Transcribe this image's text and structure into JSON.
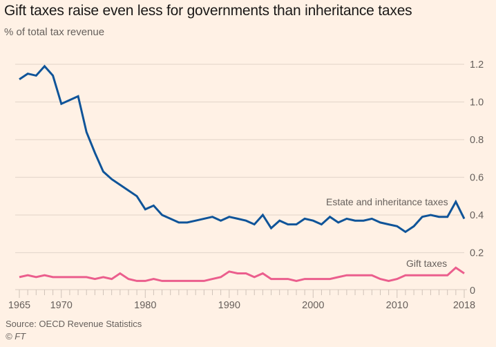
{
  "chart_data": {
    "type": "line",
    "title": "Gift taxes raise even less for governments than inheritance taxes",
    "subtitle": "% of total tax revenue",
    "xlabel": "",
    "ylabel": "% of total tax revenue",
    "x": [
      1965,
      1966,
      1967,
      1968,
      1969,
      1970,
      1971,
      1972,
      1973,
      1974,
      1975,
      1976,
      1977,
      1978,
      1979,
      1980,
      1981,
      1982,
      1983,
      1984,
      1985,
      1986,
      1987,
      1988,
      1989,
      1990,
      1991,
      1992,
      1993,
      1994,
      1995,
      1996,
      1997,
      1998,
      1999,
      2000,
      2001,
      2002,
      2003,
      2004,
      2005,
      2006,
      2007,
      2008,
      2009,
      2010,
      2011,
      2012,
      2013,
      2014,
      2015,
      2016,
      2017,
      2018
    ],
    "series": [
      {
        "name": "Estate and inheritance taxes",
        "color": "#0f5499",
        "values": [
          1.12,
          1.15,
          1.14,
          1.19,
          1.14,
          0.99,
          1.01,
          1.03,
          0.84,
          0.73,
          0.63,
          0.59,
          0.56,
          0.53,
          0.5,
          0.43,
          0.45,
          0.4,
          0.38,
          0.36,
          0.36,
          0.37,
          0.38,
          0.39,
          0.37,
          0.39,
          0.38,
          0.37,
          0.35,
          0.4,
          0.33,
          0.37,
          0.35,
          0.35,
          0.38,
          0.37,
          0.35,
          0.39,
          0.36,
          0.38,
          0.37,
          0.37,
          0.38,
          0.36,
          0.35,
          0.34,
          0.31,
          0.34,
          0.39,
          0.4,
          0.39,
          0.39,
          0.47,
          0.38
        ]
      },
      {
        "name": "Gift taxes",
        "color": "#eb5e8d",
        "values": [
          0.07,
          0.08,
          0.07,
          0.08,
          0.07,
          0.07,
          0.07,
          0.07,
          0.07,
          0.06,
          0.07,
          0.06,
          0.09,
          0.06,
          0.05,
          0.05,
          0.06,
          0.05,
          0.05,
          0.05,
          0.05,
          0.05,
          0.05,
          0.06,
          0.07,
          0.1,
          0.09,
          0.09,
          0.07,
          0.09,
          0.06,
          0.06,
          0.06,
          0.05,
          0.06,
          0.06,
          0.06,
          0.06,
          0.07,
          0.08,
          0.08,
          0.08,
          0.08,
          0.06,
          0.05,
          0.06,
          0.08,
          0.08,
          0.08,
          0.08,
          0.08,
          0.08,
          0.12,
          0.09
        ]
      }
    ],
    "xlim": [
      1965,
      2018
    ],
    "ylim": [
      0,
      1.2
    ],
    "x_tick_labels": [
      "1965",
      "1970",
      "1980",
      "1990",
      "2000",
      "2010",
      "2018"
    ],
    "x_tick_label_values": [
      1965,
      1970,
      1980,
      1990,
      2000,
      2010,
      2018
    ],
    "y_ticks": [
      0,
      0.2,
      0.4,
      0.6,
      0.8,
      1.0,
      1.2
    ],
    "y_tick_labels": [
      "0",
      "0.2",
      "0.4",
      "0.6",
      "0.8",
      "1.0",
      "1.2"
    ],
    "y_axis_side": "right",
    "grid": true,
    "legend": "inline labels near line ends",
    "source": "Source: OECD Revenue Statistics",
    "copyright": "© FT"
  },
  "colors": {
    "background": "#fff1e5",
    "grid": "#e6d9ce",
    "text": "#66605c"
  }
}
